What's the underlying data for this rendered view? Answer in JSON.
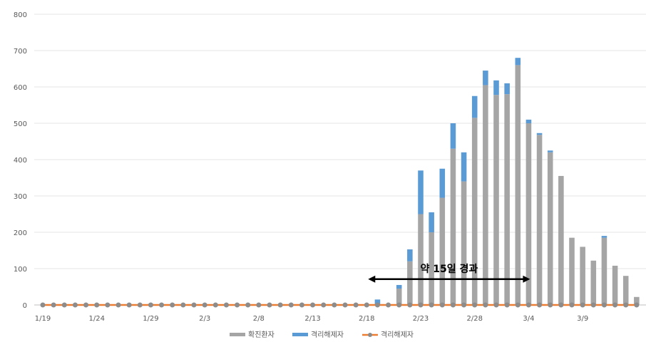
{
  "chart_data": {
    "type": "bar",
    "stacked": true,
    "ylim": [
      0,
      800
    ],
    "yticks": [
      0,
      100,
      200,
      300,
      400,
      500,
      600,
      700,
      800
    ],
    "grid": true,
    "legend_position": "bottom",
    "x_tick_labels": [
      "1/19",
      "1/24",
      "1/29",
      "2/3",
      "2/8",
      "2/13",
      "2/18",
      "2/23",
      "2/28",
      "3/4",
      "3/9"
    ],
    "x_tick_indices": [
      0,
      5,
      10,
      15,
      20,
      25,
      30,
      35,
      40,
      45,
      50
    ],
    "n_days": 56,
    "series": [
      {
        "name": "확진환자",
        "kind": "bar",
        "color": "#a5a5a5",
        "values": [
          0,
          0,
          0,
          0,
          0,
          0,
          0,
          0,
          0,
          0,
          0,
          0,
          0,
          0,
          0,
          0,
          0,
          0,
          0,
          0,
          0,
          0,
          0,
          0,
          0,
          0,
          0,
          0,
          0,
          0,
          0,
          0,
          0,
          45,
          120,
          250,
          200,
          295,
          430,
          340,
          515,
          605,
          578,
          580,
          660,
          500,
          468,
          420,
          355,
          185,
          160,
          122,
          185,
          108,
          80,
          22
        ]
      },
      {
        "name": "격리해제자",
        "kind": "bar",
        "color": "#5b9bd5",
        "values": [
          1,
          0,
          0,
          1,
          1,
          0,
          0,
          0,
          0,
          0,
          3,
          1,
          0,
          0,
          0,
          1,
          1,
          0,
          0,
          0,
          0,
          1,
          0,
          0,
          1,
          0,
          0,
          0,
          0,
          2,
          2,
          15,
          0,
          10,
          33,
          120,
          55,
          80,
          70,
          80,
          60,
          40,
          40,
          30,
          20,
          10,
          5,
          5,
          0,
          0,
          0,
          0,
          5,
          0,
          0,
          0
        ]
      },
      {
        "name": "격리해제자",
        "kind": "line",
        "color": "#ed7d31",
        "values": [
          0,
          0,
          0,
          0,
          0,
          0,
          0,
          0,
          0,
          0,
          0,
          0,
          0,
          0,
          0,
          0,
          0,
          0,
          0,
          0,
          0,
          0,
          0,
          0,
          0,
          0,
          0,
          0,
          0,
          0,
          0,
          0,
          0,
          0,
          0,
          0,
          0,
          0,
          0,
          0,
          0,
          0,
          0,
          0,
          0,
          0,
          0,
          0,
          0,
          0,
          0,
          0,
          0,
          0,
          0,
          0
        ]
      }
    ],
    "annotation": {
      "text": "약 15일 경과",
      "from_index": 30,
      "to_index": 45,
      "y_value": 75
    }
  }
}
